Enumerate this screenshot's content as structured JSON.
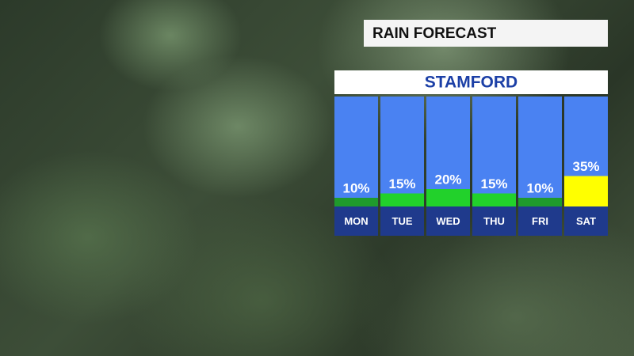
{
  "chart_data": {
    "type": "bar",
    "title": "RAIN FORECAST",
    "subtitle": "STAMFORD",
    "categories": [
      "MON",
      "TUE",
      "WED",
      "THU",
      "FRI",
      "SAT"
    ],
    "values": [
      10,
      15,
      20,
      15,
      10,
      35
    ],
    "value_labels": [
      "10%",
      "15%",
      "20%",
      "15%",
      "10%",
      "35%"
    ],
    "colors": [
      "#1f9a2c",
      "#22d12b",
      "#22d12b",
      "#22d12b",
      "#1f9a2c",
      "#ffff00"
    ]
  }
}
